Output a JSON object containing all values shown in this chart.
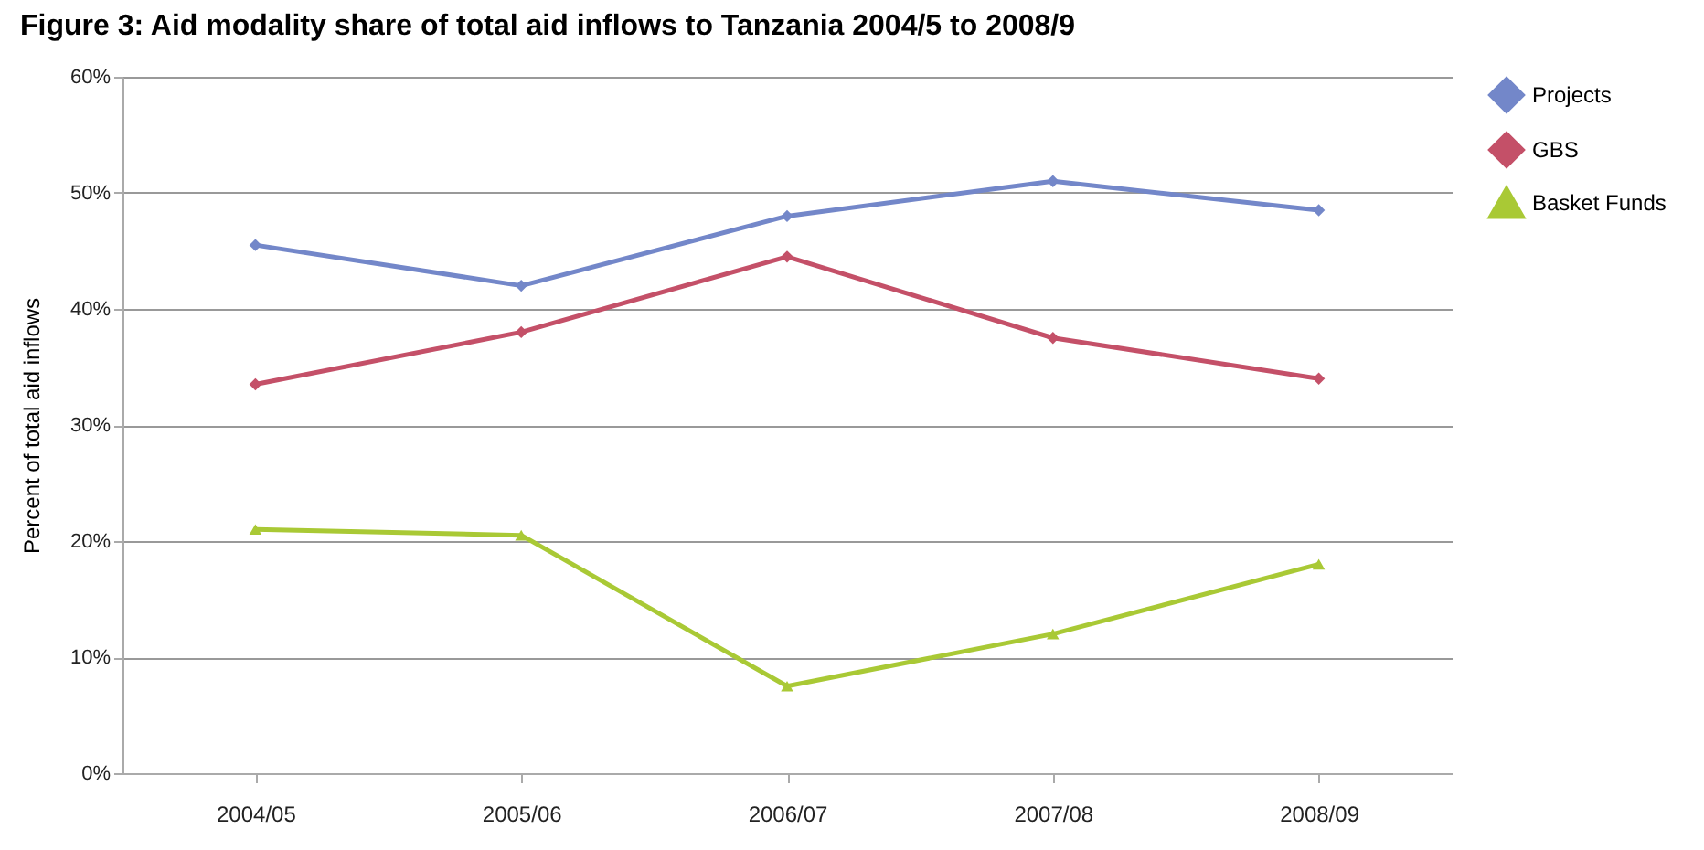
{
  "chart_data": {
    "type": "line",
    "title": "Figure 3: Aid modality share of total aid inflows to Tanzania 2004/5 to 2008/9",
    "ylabel": "Percent of total aid inflows",
    "categories": [
      "2004/05",
      "2005/06",
      "2006/07",
      "2007/08",
      "2008/09"
    ],
    "series": [
      {
        "name": "Projects",
        "color": "#7387c9",
        "marker": "diamond",
        "values": [
          45.5,
          42,
          48,
          51,
          48.5
        ]
      },
      {
        "name": "GBS",
        "color": "#c45068",
        "marker": "diamond",
        "values": [
          33.5,
          38,
          44.5,
          37.5,
          34
        ]
      },
      {
        "name": "Basket Funds",
        "color": "#a9c935",
        "marker": "triangle",
        "values": [
          21,
          20.5,
          7.5,
          12,
          18
        ]
      }
    ],
    "ylim": [
      0,
      60
    ],
    "yticks": [
      {
        "value": 0,
        "label": "0%"
      },
      {
        "value": 10,
        "label": "10%"
      },
      {
        "value": 20,
        "label": "20%"
      },
      {
        "value": 30,
        "label": "30%"
      },
      {
        "value": 40,
        "label": "40%"
      },
      {
        "value": 50,
        "label": "50%"
      },
      {
        "value": 60,
        "label": "60%"
      }
    ],
    "grid": "y",
    "legend": "right",
    "line_style": "solid"
  }
}
